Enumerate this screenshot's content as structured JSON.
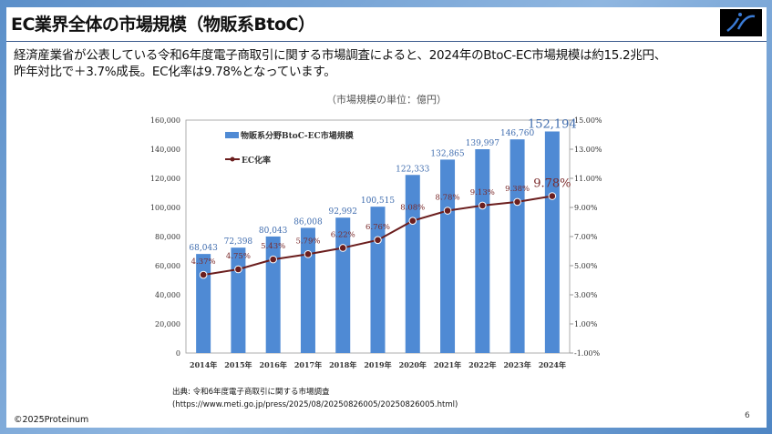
{
  "slide": {
    "title": "EC業界全体の市場規模（物販系BtoC）",
    "body_line1": "経済産業省が公表している令和6年度電子商取引に関する市場調査によると、2024年のBtoC-EC市場規模は約15.2兆円、",
    "body_line2": "昨年対比で＋3.7%成長。EC化率は9.78%となっています。",
    "unit_note": "（市場規模の単位：億円）",
    "source_line1": "出典: 令和6年度電子商取引に関する市場調査",
    "source_line2": "(https://www.meti.go.jp/press/2025/08/20250826005/20250826005.html)",
    "copyright": "©2025Proteinum",
    "page_number": "6",
    "logo_icon": "proteinum-logo-icon"
  },
  "chart_data": {
    "type": "bar+line",
    "categories": [
      "2014年",
      "2015年",
      "2016年",
      "2017年",
      "2018年",
      "2019年",
      "2020年",
      "2021年",
      "2022年",
      "2023年",
      "2024年"
    ],
    "series": [
      {
        "name": "物販系分野BtoC-EC市場規模",
        "type": "bar",
        "axis": "left",
        "color": "#4f8ad4",
        "values": [
          68043,
          72398,
          80043,
          86008,
          92992,
          100515,
          122333,
          132865,
          139997,
          146760,
          152194
        ],
        "labels": [
          "68,043",
          "72,398",
          "80,043",
          "86,008",
          "92,992",
          "100,515",
          "122,333",
          "132,865",
          "139,997",
          "146,760",
          "152,194"
        ]
      },
      {
        "name": "EC化率",
        "type": "line",
        "axis": "right",
        "color": "#6b1e1e",
        "values": [
          4.37,
          4.75,
          5.43,
          5.79,
          6.22,
          6.76,
          8.08,
          8.78,
          9.13,
          9.38,
          9.78
        ],
        "labels": [
          "4.37%",
          "4.75%",
          "5.43%",
          "5.79%",
          "6.22%",
          "6.76%",
          "8.08%",
          "8.78%",
          "9.13%",
          "9.38%",
          "9.78%"
        ]
      }
    ],
    "left_axis": {
      "range": [
        0,
        160000
      ],
      "ticks": [
        "0",
        "20,000",
        "40,000",
        "60,000",
        "80,000",
        "100,000",
        "120,000",
        "140,000",
        "160,000"
      ]
    },
    "right_axis": {
      "range": [
        -1,
        15
      ],
      "ticks": [
        "-1.00%",
        "1.00%",
        "3.00%",
        "5.00%",
        "7.00%",
        "9.00%",
        "11.00%",
        "13.00%",
        "15.00%"
      ]
    },
    "legend_position": "top-left",
    "grid": false
  }
}
